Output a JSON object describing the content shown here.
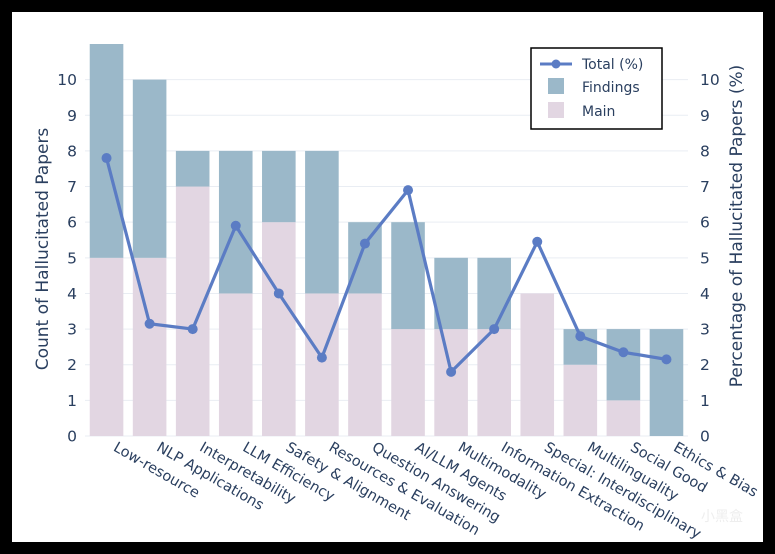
{
  "chart_data": {
    "type": "bar",
    "stacked": true,
    "categories": [
      "Low-resource",
      "NLP Applications",
      "Interpretability",
      "LLM Efficiency",
      "Safety & Alignment",
      "Resources & Evaluation",
      "Question Answering",
      "AI/LLM Agents",
      "Multimodality",
      "Information Extraction",
      "Special: Interdisciplinary",
      "Multilinguality",
      "Social Good",
      "Ethics & Bias"
    ],
    "series": [
      {
        "name": "Main",
        "type": "bar",
        "axis": "left",
        "color": "#e2d6e2",
        "values": [
          5,
          5,
          7,
          4,
          6,
          4,
          4,
          3,
          3,
          3,
          4,
          2,
          1,
          0
        ]
      },
      {
        "name": "Findings",
        "type": "bar",
        "axis": "left",
        "color": "#9bb8c9",
        "values": [
          6,
          5,
          1,
          4,
          2,
          4,
          2,
          3,
          2,
          2,
          0,
          1,
          2,
          3
        ]
      },
      {
        "name": "Total (%)",
        "type": "line",
        "axis": "right",
        "color": "#5b7cc4",
        "values": [
          7.8,
          3.15,
          3.0,
          5.9,
          4.0,
          2.2,
          5.4,
          6.9,
          1.8,
          3.0,
          5.45,
          2.8,
          2.35,
          2.15
        ]
      }
    ],
    "ylabel": "Count of Hallucitated Papers",
    "y2label": "Percentage of Hallucitated Papers (%)",
    "ylim": [
      0,
      11
    ],
    "y2lim": [
      0,
      11
    ],
    "yticks": [
      0,
      1,
      2,
      3,
      4,
      5,
      6,
      7,
      8,
      9,
      10
    ],
    "legend": {
      "position": "top-right",
      "entries": [
        "Total (%)",
        "Findings",
        "Main"
      ]
    },
    "grid": true
  },
  "watermark": "小黑盒"
}
